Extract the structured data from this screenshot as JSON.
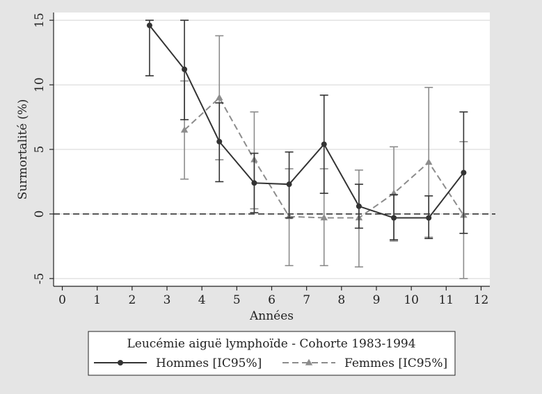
{
  "chart_data": {
    "type": "line",
    "title": "",
    "xlabel": "Années",
    "ylabel": "Surmortalité (%)",
    "xlim": [
      -0.25,
      12.25
    ],
    "ylim": [
      -5.6,
      15.6
    ],
    "x_ticks": [
      0,
      1,
      2,
      3,
      4,
      5,
      6,
      7,
      8,
      9,
      10,
      11,
      12
    ],
    "y_ticks": [
      -5,
      0,
      5,
      10,
      15
    ],
    "grid": true,
    "reference_line": {
      "y": 0,
      "style": "dashed"
    },
    "legend": {
      "placement": "bottom",
      "title": "Leucémie aiguë lymphoïde - Cohorte 1983-1994"
    },
    "series": [
      {
        "name": "Hommes [IC95%]",
        "color": "#333333",
        "marker": "circle",
        "line_style": "solid",
        "x": [
          2.5,
          3.5,
          4.5,
          5.5,
          6.5,
          7.5,
          8.5,
          9.5,
          10.5,
          11.5
        ],
        "y": [
          14.6,
          11.2,
          5.6,
          2.4,
          2.3,
          5.4,
          0.6,
          -0.3,
          -0.3,
          3.2
        ],
        "ci_low": [
          10.7,
          7.3,
          2.5,
          0.1,
          -0.3,
          1.6,
          -1.1,
          -2.0,
          -1.9,
          -1.5
        ],
        "ci_high": [
          15.0,
          15.0,
          8.6,
          4.7,
          4.8,
          9.2,
          2.3,
          1.5,
          1.4,
          7.9
        ]
      },
      {
        "name": "Femmes [IC95%]",
        "color": "#8c8c8c",
        "marker": "triangle",
        "line_style": "dashed",
        "x": [
          3.5,
          4.5,
          5.5,
          6.5,
          7.5,
          8.5,
          9.5,
          10.5,
          11.5
        ],
        "y": [
          6.5,
          9.0,
          4.2,
          -0.2,
          -0.3,
          -0.3,
          1.6,
          4.0,
          -0.1
        ],
        "ci_low": [
          2.7,
          4.2,
          0.4,
          -4.0,
          -4.0,
          -4.1,
          -2.1,
          -1.8,
          -5.0
        ],
        "ci_high": [
          10.3,
          13.8,
          7.9,
          3.5,
          3.5,
          3.4,
          5.2,
          9.8,
          5.6
        ]
      }
    ]
  }
}
